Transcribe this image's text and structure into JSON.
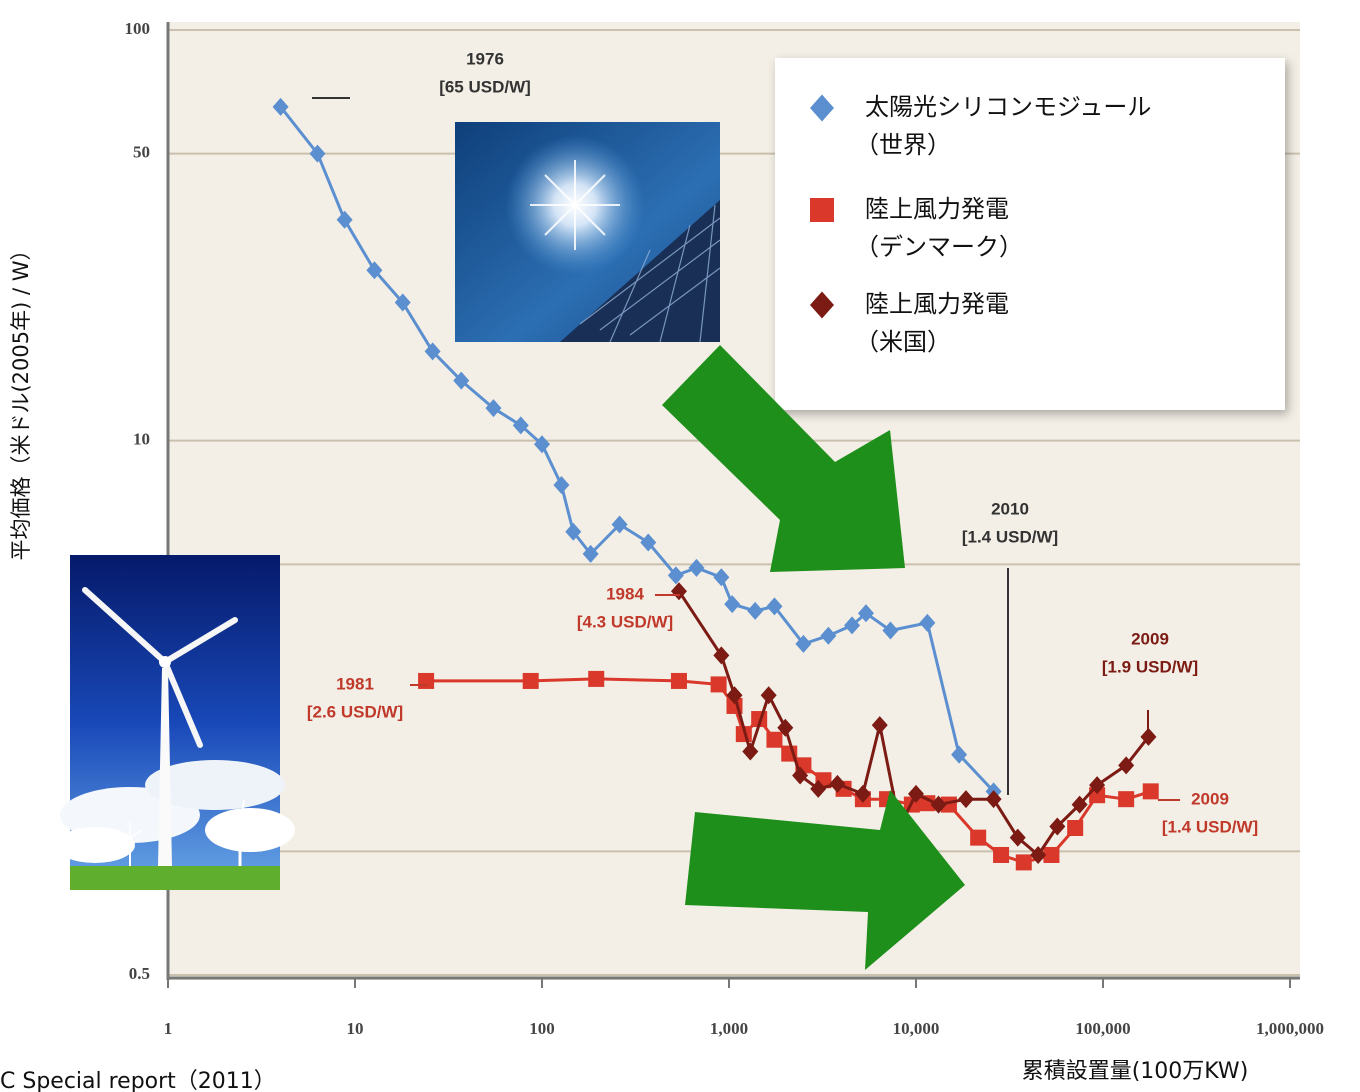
{
  "chart_data": {
    "type": "line",
    "x_label": "累積設置量(100万KW)",
    "y_label": "平均価格（米ドル(2005年) / W）",
    "source": "C Special report（2011）",
    "log_x": true,
    "log_y": true,
    "grid": true,
    "xlim": [
      1,
      1000000
    ],
    "xticks": [
      1,
      10,
      100,
      {
        "value": 1000,
        "label": "1,000"
      },
      {
        "value": 10000,
        "label": "10,000"
      },
      {
        "value": 100000,
        "label": "100,000"
      },
      {
        "value": 1000000,
        "label": "1,000,000"
      }
    ],
    "ylim": [
      0.5,
      100
    ],
    "yticks": [
      0.5,
      1,
      5,
      10,
      50,
      100
    ],
    "legend": "upper right",
    "series": [
      {
        "name": "太陽光シリコンモジュール（世界）",
        "color": "#5b8fd0",
        "marker": "diamond",
        "x": [
          4,
          6.3,
          8.8,
          12.7,
          18,
          26,
          37,
          55,
          77,
          100,
          127,
          147,
          182,
          260,
          370,
          520,
          670,
          910,
          1040,
          1380,
          1750,
          2500,
          3400,
          4550,
          5400,
          7300,
          11500,
          17000,
          26000
        ],
        "values": [
          65,
          50,
          34.5,
          26,
          21.7,
          16.5,
          14,
          12,
          10.9,
          9.8,
          7.8,
          6.0,
          5.3,
          6.25,
          5.65,
          4.7,
          4.9,
          4.65,
          4.0,
          3.85,
          3.95,
          3.2,
          3.35,
          3.55,
          3.8,
          3.45,
          3.6,
          1.72,
          1.4
        ]
      },
      {
        "name": "陸上風力発電（デンマーク）",
        "color": "#d9382b",
        "marker": "square",
        "x": [
          24,
          87,
          195,
          540,
          880,
          1070,
          1200,
          1450,
          1750,
          2100,
          2500,
          3200,
          4100,
          5200,
          7000,
          9500,
          11500,
          15000,
          21500,
          28500,
          37700,
          53000,
          71000,
          93000,
          133000,
          180000
        ],
        "values": [
          2.6,
          2.6,
          2.63,
          2.6,
          2.55,
          2.26,
          1.93,
          2.1,
          1.87,
          1.73,
          1.62,
          1.49,
          1.42,
          1.34,
          1.34,
          1.3,
          1.31,
          1.3,
          1.08,
          0.98,
          0.94,
          0.98,
          1.14,
          1.37,
          1.34,
          1.4
        ]
      },
      {
        "name": "陸上風力発電（米国）",
        "color": "#7b1b14",
        "marker": "diamond",
        "x": [
          540,
          910,
          1070,
          1300,
          1630,
          2000,
          2400,
          3000,
          3800,
          5200,
          6400,
          8200,
          10000,
          13200,
          18500,
          26000,
          35000,
          45000,
          57000,
          75000,
          93000,
          133000,
          175000
        ],
        "values": [
          4.3,
          3.0,
          2.4,
          1.75,
          2.4,
          2.0,
          1.53,
          1.42,
          1.46,
          1.38,
          2.03,
          1.15,
          1.38,
          1.3,
          1.34,
          1.34,
          1.08,
          0.98,
          1.15,
          1.3,
          1.45,
          1.62,
          1.9
        ]
      }
    ],
    "annotations": [
      {
        "lines": [
          "1976",
          "[65 USD/W]"
        ],
        "color": "#333333"
      },
      {
        "lines": [
          "1984",
          "[4.3 USD/W]"
        ],
        "color": "#c0392b"
      },
      {
        "lines": [
          "1981",
          "[2.6 USD/W]"
        ],
        "color": "#c0392b"
      },
      {
        "lines": [
          "2010",
          "[1.4 USD/W]"
        ],
        "color": "#333333"
      },
      {
        "lines": [
          "2009",
          "[1.9 USD/W]"
        ],
        "color": "#7b1b14"
      },
      {
        "lines": [
          "2009",
          "[1.4 USD/W]"
        ],
        "color": "#c0392b"
      }
    ]
  }
}
